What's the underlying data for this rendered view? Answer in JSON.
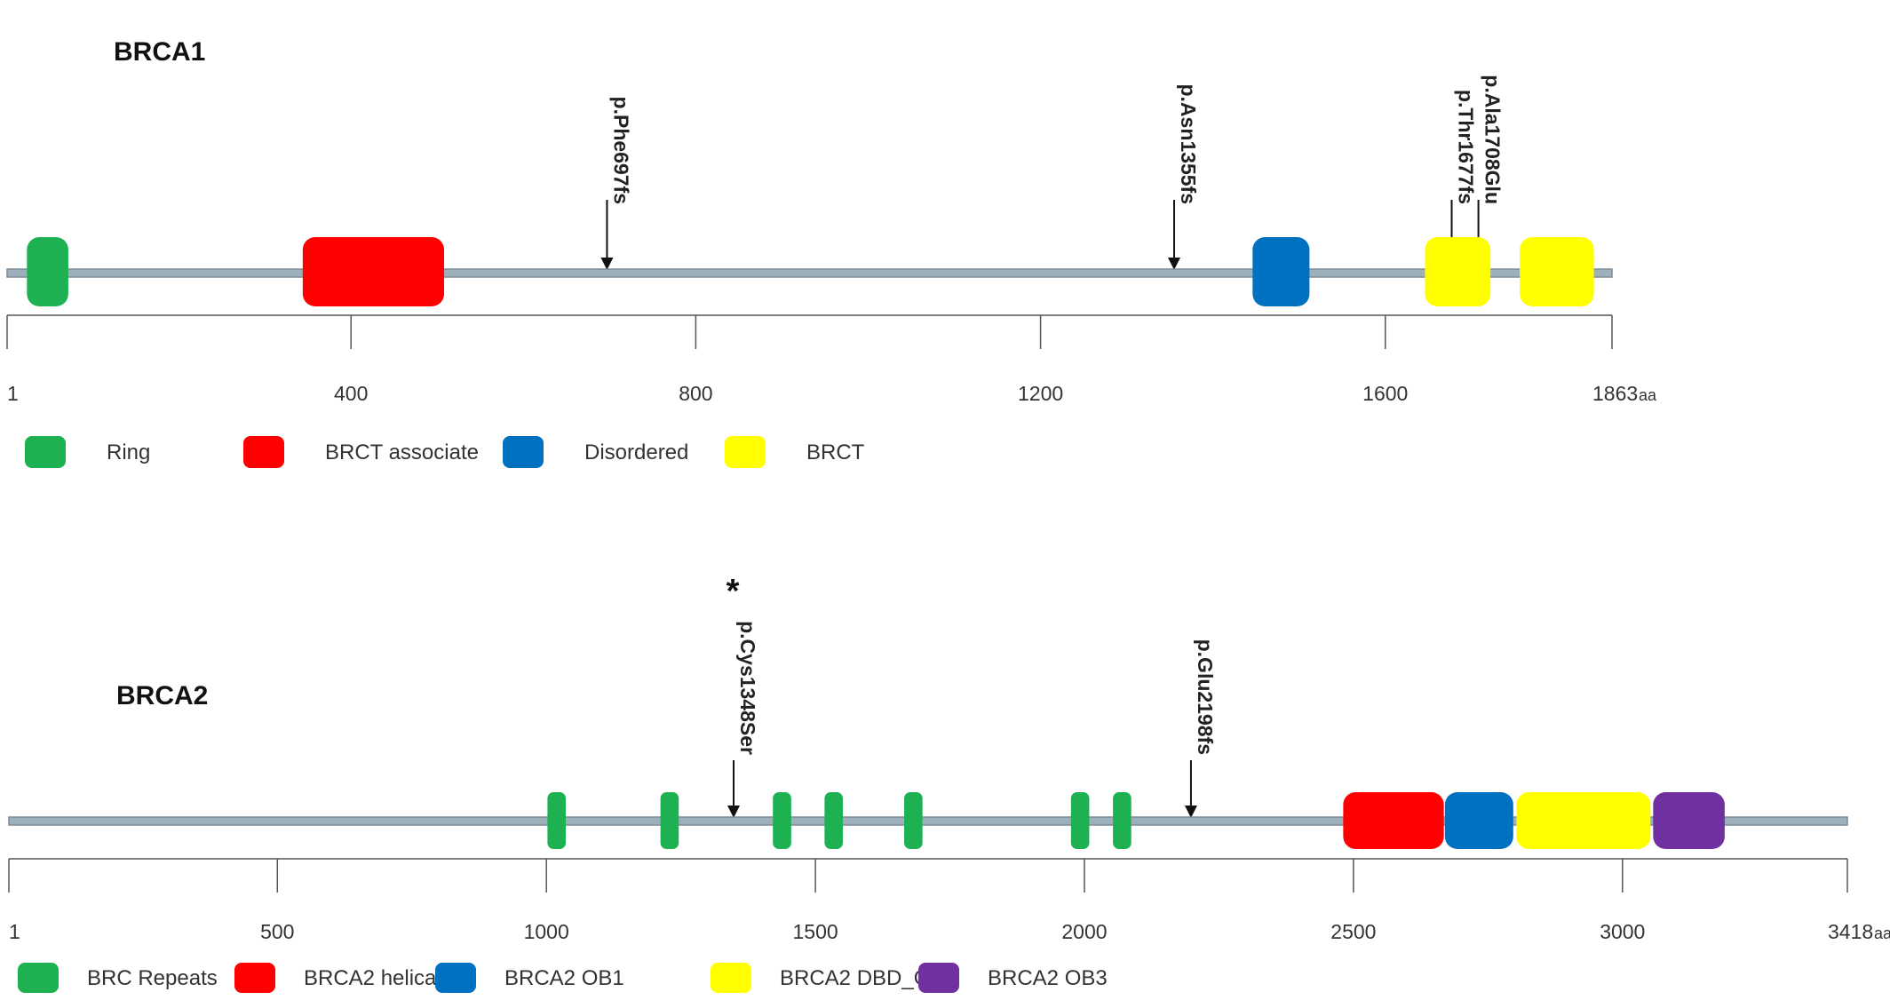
{
  "colors": {
    "backbone": "#9fb0bd",
    "backbone_edge": "#7c8c98",
    "axis": "#555555",
    "arrow": "#111111"
  },
  "genes": [
    {
      "id": "brca1",
      "name": "BRCA1",
      "length": 1863,
      "unit": "aa",
      "ticks": [
        1,
        400,
        800,
        1200,
        1600
      ],
      "end_label": "1863",
      "domains": [
        {
          "name": "Ring",
          "start": 24,
          "end": 72,
          "color": "#1db151"
        },
        {
          "name": "BRCT associate",
          "start": 344,
          "end": 508,
          "color": "#ff0000"
        },
        {
          "name": "Disordered",
          "start": 1446,
          "end": 1512,
          "color": "#0070c0"
        },
        {
          "name": "BRCT",
          "start": 1646,
          "end": 1722,
          "color": "#ffff00"
        },
        {
          "name": "BRCT",
          "start": 1756,
          "end": 1842,
          "color": "#ffff00"
        }
      ],
      "mutations": [
        {
          "label": "p.Phe697fs",
          "position": 697,
          "star": false
        },
        {
          "label": "p.Asn1355fs",
          "position": 1355,
          "star": false
        },
        {
          "label": "p.Thr1677fs",
          "position": 1677,
          "star": false
        },
        {
          "label": "p.Ala1708Glu",
          "position": 1708,
          "star": false
        }
      ],
      "legend": [
        {
          "label": "Ring",
          "color": "#1db151"
        },
        {
          "label": "BRCT associate",
          "color": "#ff0000"
        },
        {
          "label": "Disordered",
          "color": "#0070c0"
        },
        {
          "label": "BRCT",
          "color": "#ffff00"
        }
      ]
    },
    {
      "id": "brca2",
      "name": "BRCA2",
      "length": 3418,
      "unit": "aa",
      "ticks": [
        1,
        500,
        1000,
        1500,
        2000,
        2500,
        3000
      ],
      "end_label": "3418",
      "domains": [
        {
          "name": "BRC Repeats",
          "start": 1002,
          "end": 1036,
          "color": "#1db151"
        },
        {
          "name": "BRC Repeats",
          "start": 1212,
          "end": 1246,
          "color": "#1db151"
        },
        {
          "name": "BRC Repeats",
          "start": 1421,
          "end": 1455,
          "color": "#1db151"
        },
        {
          "name": "BRC Repeats",
          "start": 1517,
          "end": 1551,
          "color": "#1db151"
        },
        {
          "name": "BRC Repeats",
          "start": 1665,
          "end": 1699,
          "color": "#1db151"
        },
        {
          "name": "BRC Repeats",
          "start": 1975,
          "end": 2009,
          "color": "#1db151"
        },
        {
          "name": "BRC Repeats",
          "start": 2053,
          "end": 2087,
          "color": "#1db151"
        },
        {
          "name": "BRCA2 helical",
          "start": 2481,
          "end": 2668,
          "color": "#ff0000"
        },
        {
          "name": "BRCA2 OB1",
          "start": 2670,
          "end": 2797,
          "color": "#0070c0"
        },
        {
          "name": "BRCA2 DBD_OB2",
          "start": 2803,
          "end": 3052,
          "color": "#ffff00"
        },
        {
          "name": "BRCA2 OB3",
          "start": 3057,
          "end": 3190,
          "color": "#7030a0"
        }
      ],
      "mutations": [
        {
          "label": "p.Cys1348Ser",
          "position": 1348,
          "star": true,
          "star_text": "*"
        },
        {
          "label": "p.Glu2198fs",
          "position": 2198,
          "star": false
        }
      ],
      "legend": [
        {
          "label": "BRC Repeats",
          "color": "#1db151"
        },
        {
          "label": "BRCA2 helical",
          "color": "#ff0000"
        },
        {
          "label": "BRCA2 OB1",
          "color": "#0070c0"
        },
        {
          "label": "BRCA2 DBD_OB2",
          "color": "#ffff00"
        },
        {
          "label": "BRCA2 OB3",
          "color": "#7030a0"
        }
      ]
    }
  ]
}
